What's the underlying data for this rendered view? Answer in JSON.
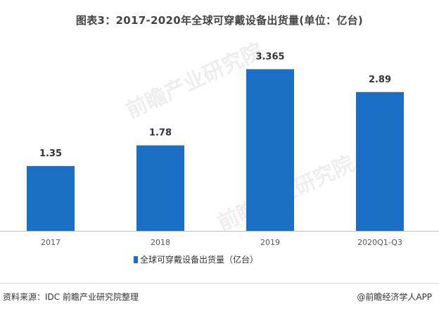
{
  "title": "图表3：2017-2020年全球可穿戴设备出货量(单位：亿台)",
  "footer": {
    "source": "资料来源：IDC 前瞻产业研究院整理",
    "brand": "@前瞻经济学人APP"
  },
  "colors": {
    "bar": "#1a6fc4",
    "axis": "#bfbfbf",
    "label": "#333333",
    "tick": "#555555"
  },
  "chart_data": {
    "type": "bar",
    "categories": [
      "2017",
      "2018",
      "2019",
      "2020Q1-Q3"
    ],
    "series": [
      {
        "name": "全球可穿戴设备出货量（亿台）",
        "values": [
          1.35,
          1.78,
          3.365,
          2.89
        ],
        "labels": [
          "1.35",
          "1.78",
          "3.365",
          "2.89"
        ]
      }
    ],
    "ylim": [
      0,
      4.0
    ],
    "grid": false,
    "legend_position": "bottom"
  }
}
